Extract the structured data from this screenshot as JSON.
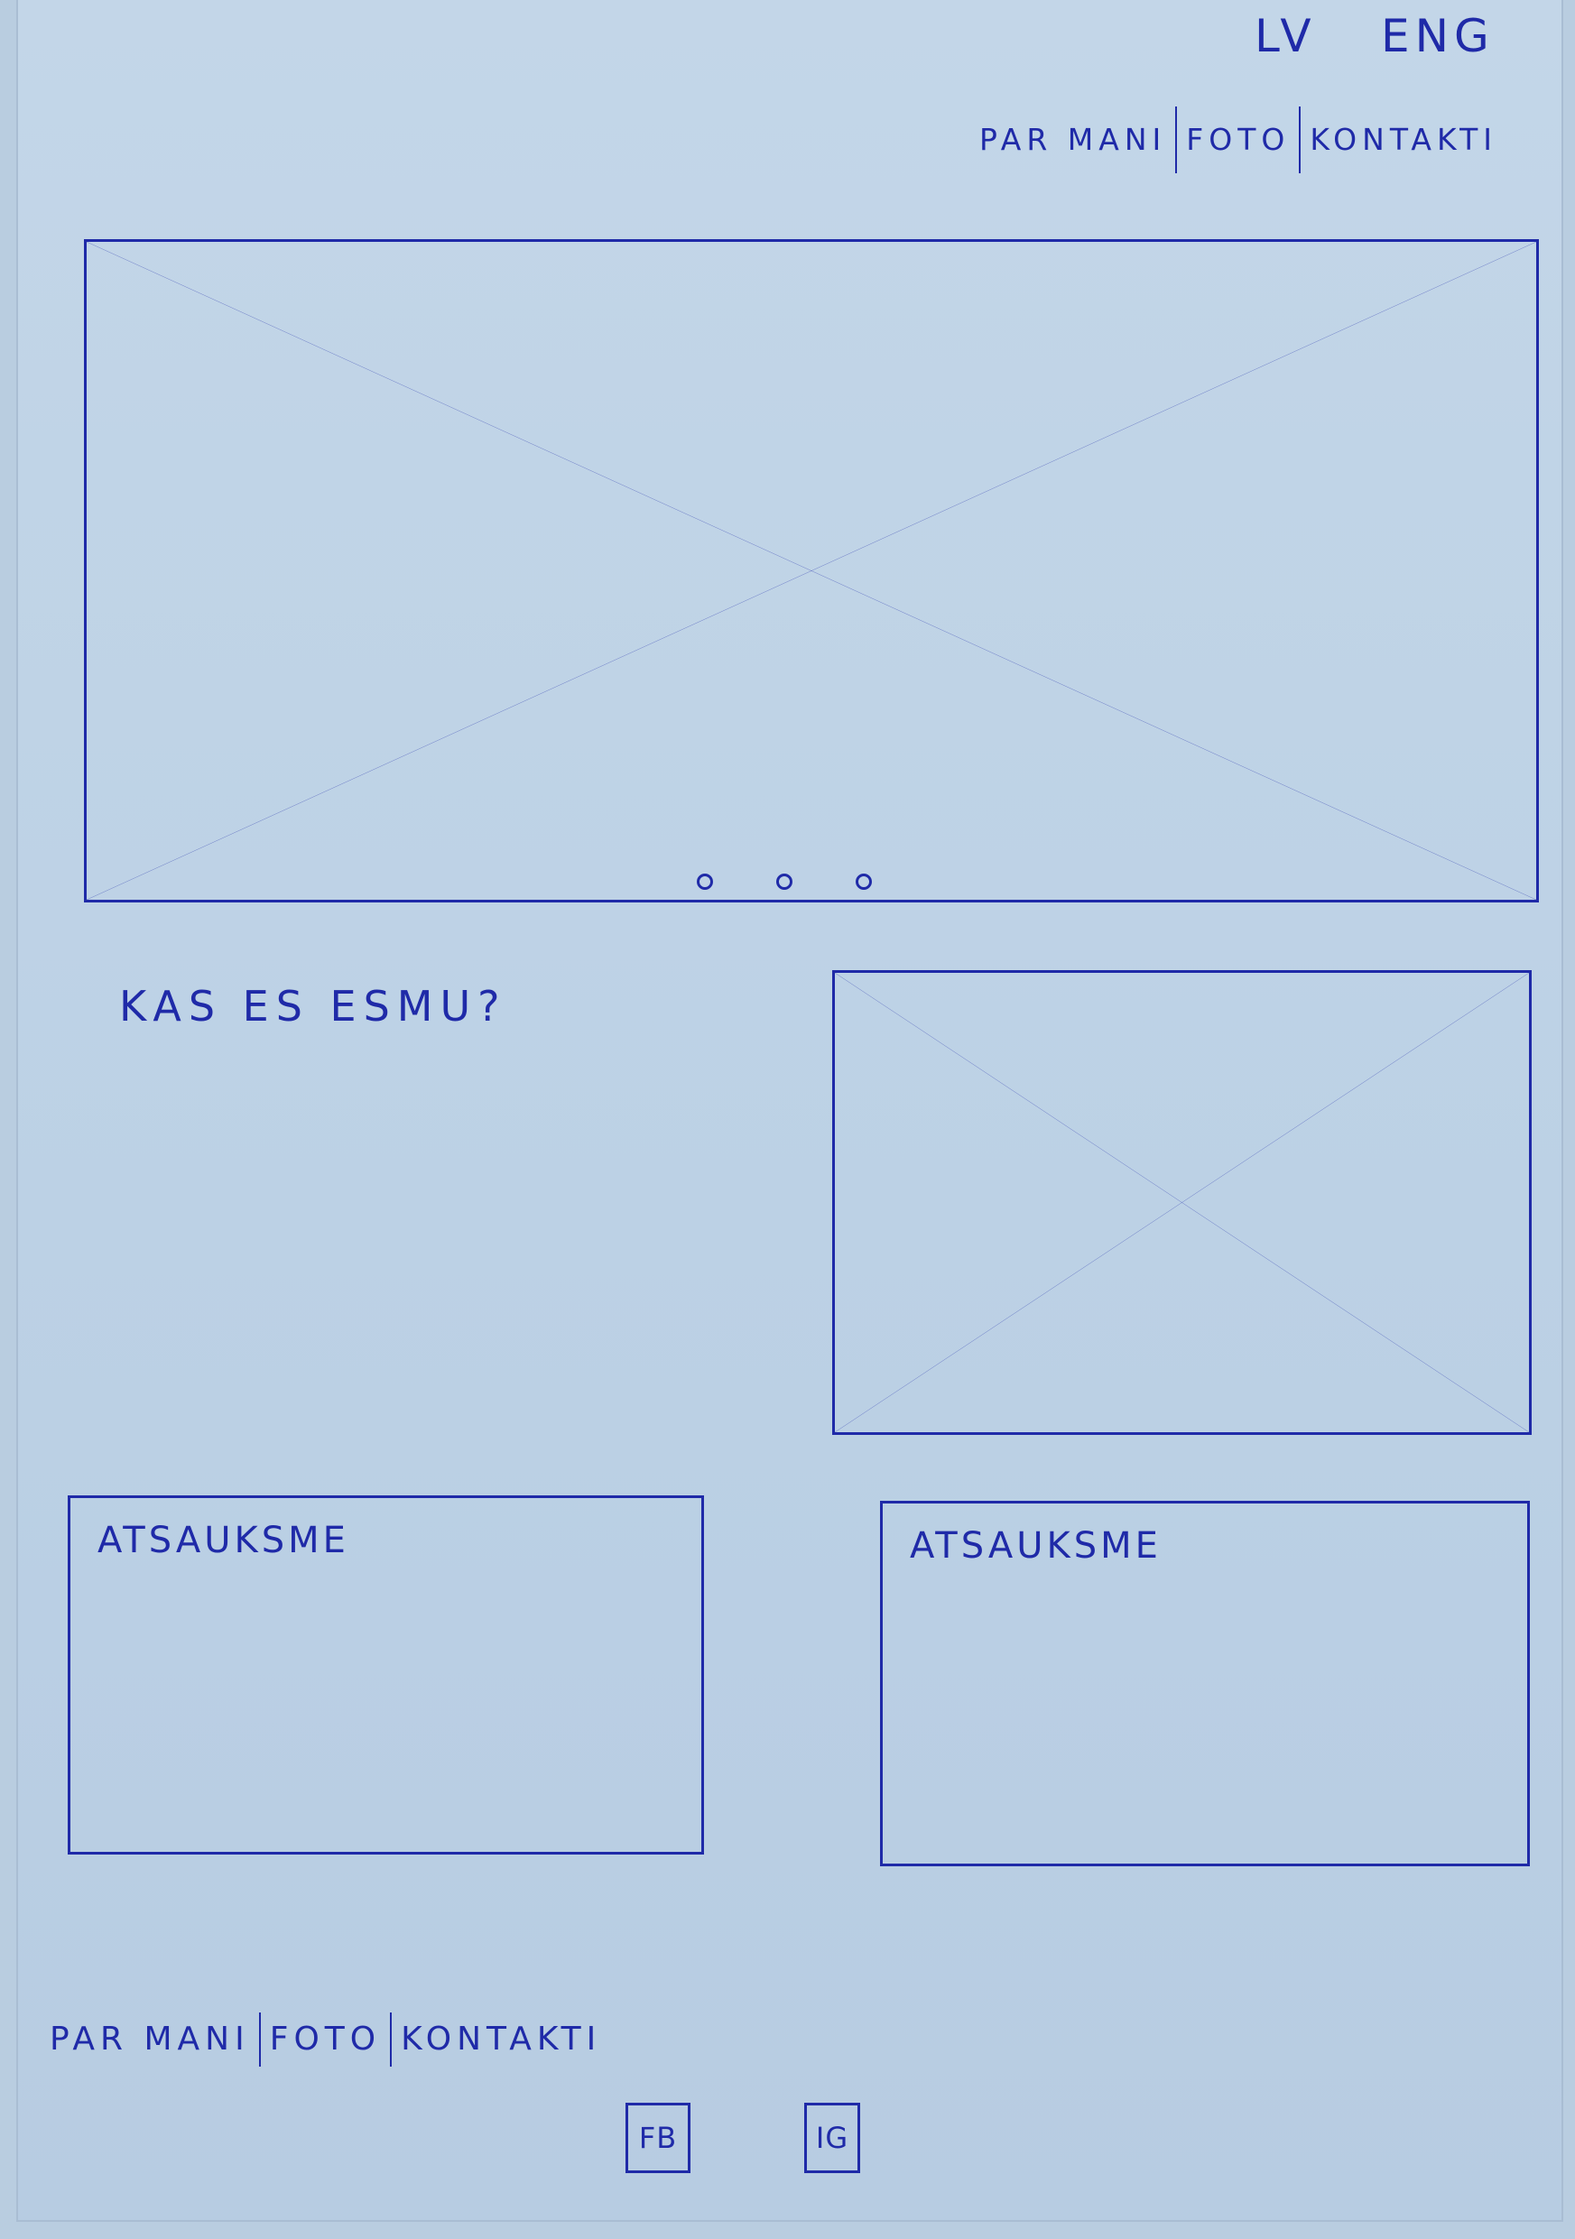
{
  "header": {
    "languages": [
      {
        "label": "LV"
      },
      {
        "label": "ENG"
      }
    ],
    "nav": [
      {
        "label": "PAR MANI"
      },
      {
        "label": "FOTO"
      },
      {
        "label": "KONTAKTI"
      }
    ]
  },
  "hero": {
    "slide_count": 3
  },
  "intro": {
    "heading": "KAS ES ESMU?"
  },
  "testimonials": [
    {
      "title": "ATSAUKSME"
    },
    {
      "title": "ATSAUKSME"
    }
  ],
  "footer": {
    "nav": [
      {
        "label": "PAR MANI"
      },
      {
        "label": "FOTO"
      },
      {
        "label": "KONTAKTI"
      }
    ],
    "social": [
      {
        "label": "FB"
      },
      {
        "label": "IG"
      }
    ]
  },
  "colors": {
    "ink": "#1f2aa8",
    "paper": "#c3d6e8"
  }
}
